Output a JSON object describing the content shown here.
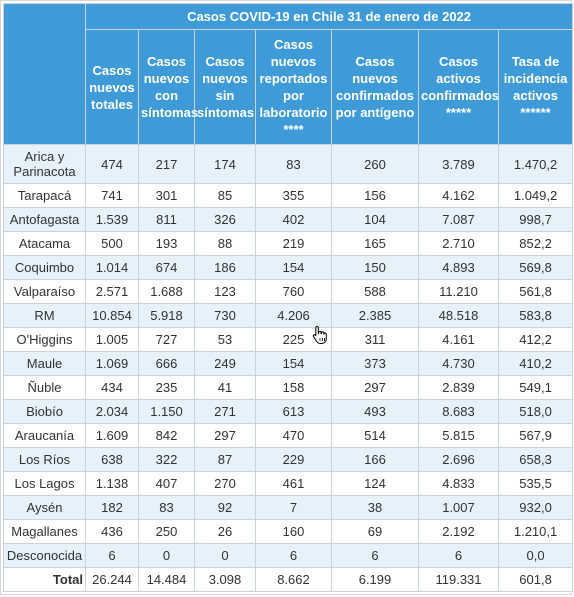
{
  "title": "Casos COVID-19 en Chile 31 de enero de 2022",
  "columns": [
    "Casos nuevos totales",
    "Casos nuevos con síntomas",
    "Casos nuevos sin síntomas",
    "Casos nuevos reportados por laboratorio ****",
    "Casos nuevos confirmados por antígeno",
    "Casos activos confirmados *****",
    "Tasa de incidencia activos ******"
  ],
  "rows": [
    {
      "region": "Arica y Parinacota",
      "values": [
        "474",
        "217",
        "174",
        "83",
        "260",
        "3.789",
        "1.470,2"
      ]
    },
    {
      "region": "Tarapacá",
      "values": [
        "741",
        "301",
        "85",
        "355",
        "156",
        "4.162",
        "1.049,2"
      ]
    },
    {
      "region": "Antofagasta",
      "values": [
        "1.539",
        "811",
        "326",
        "402",
        "104",
        "7.087",
        "998,7"
      ]
    },
    {
      "region": "Atacama",
      "values": [
        "500",
        "193",
        "88",
        "219",
        "165",
        "2.710",
        "852,2"
      ]
    },
    {
      "region": "Coquimbo",
      "values": [
        "1.014",
        "674",
        "186",
        "154",
        "150",
        "4.893",
        "569,8"
      ]
    },
    {
      "region": "Valparaíso",
      "values": [
        "2.571",
        "1.688",
        "123",
        "760",
        "588",
        "11.210",
        "561,8"
      ]
    },
    {
      "region": "RM",
      "values": [
        "10.854",
        "5.918",
        "730",
        "4.206",
        "2.385",
        "48.518",
        "583,8"
      ]
    },
    {
      "region": "O'Higgins",
      "values": [
        "1.005",
        "727",
        "53",
        "225",
        "311",
        "4.161",
        "412,2"
      ]
    },
    {
      "region": "Maule",
      "values": [
        "1.069",
        "666",
        "249",
        "154",
        "373",
        "4.730",
        "410,2"
      ]
    },
    {
      "region": "Ñuble",
      "values": [
        "434",
        "235",
        "41",
        "158",
        "297",
        "2.839",
        "549,1"
      ]
    },
    {
      "region": "Biobío",
      "values": [
        "2.034",
        "1.150",
        "271",
        "613",
        "493",
        "8.683",
        "518,0"
      ]
    },
    {
      "region": "Araucanía",
      "values": [
        "1.609",
        "842",
        "297",
        "470",
        "514",
        "5.815",
        "567,9"
      ]
    },
    {
      "region": "Los Ríos",
      "values": [
        "638",
        "322",
        "87",
        "229",
        "166",
        "2.696",
        "658,3"
      ]
    },
    {
      "region": "Los Lagos",
      "values": [
        "1.138",
        "407",
        "270",
        "461",
        "124",
        "4.833",
        "535,5"
      ]
    },
    {
      "region": "Aysén",
      "values": [
        "182",
        "83",
        "92",
        "7",
        "38",
        "1.007",
        "932,0"
      ]
    },
    {
      "region": "Magallanes",
      "values": [
        "436",
        "250",
        "26",
        "160",
        "69",
        "2.192",
        "1.210,1"
      ]
    },
    {
      "region": "Desconocida",
      "values": [
        "6",
        "0",
        "0",
        "6",
        "6",
        "6",
        "0,0"
      ]
    }
  ],
  "total": {
    "region": "Total",
    "values": [
      "26.244",
      "14.484",
      "3.098",
      "8.662",
      "6.199",
      "119.331",
      "601,8"
    ]
  },
  "colors": {
    "header": "#3f9bd8",
    "stripe": "#e6f1fa",
    "border": "#c9d3da"
  },
  "icons": {
    "cursor": "hand-pointer-icon"
  }
}
